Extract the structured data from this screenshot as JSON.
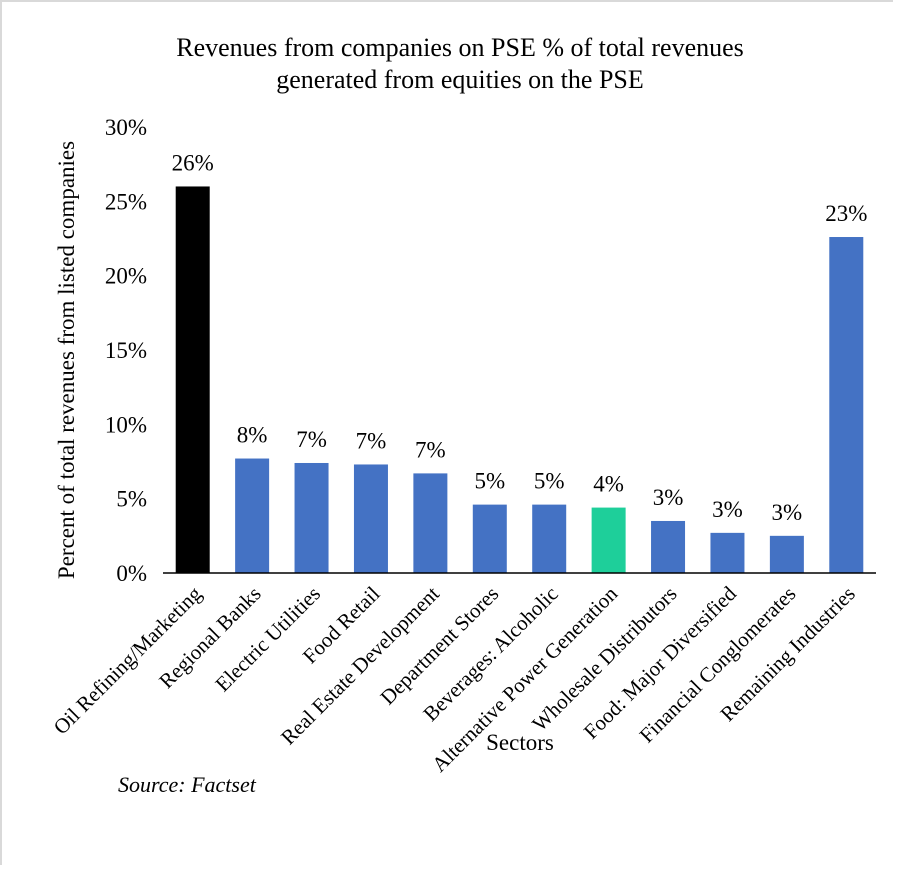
{
  "chart_data": {
    "type": "bar",
    "title_lines": [
      "Revenues from companies on PSE % of total revenues",
      "generated from equities on the PSE"
    ],
    "xlabel": "Sectors",
    "ylabel": "Percent of total revenues from listed companies",
    "ylim": [
      0,
      30
    ],
    "yticks": [
      "0%",
      "5%",
      "10%",
      "15%",
      "20%",
      "25%",
      "30%"
    ],
    "grid": false,
    "categories": [
      "Oil Refining/Marketing",
      "Regional Banks",
      "Electric Utilities",
      "Food Retail",
      "Real Estate Development",
      "Department Stores",
      "Beverages: Alcoholic",
      "Alternative Power Generation",
      "Wholesale Distributors",
      "Food: Major Diversified",
      "Financial Conglomerates",
      "Remaining Industries"
    ],
    "values": [
      26.0,
      7.7,
      7.4,
      7.3,
      6.7,
      4.6,
      4.6,
      4.4,
      3.5,
      2.7,
      2.5,
      22.6
    ],
    "data_labels": [
      "26%",
      "8%",
      "7%",
      "7%",
      "7%",
      "5%",
      "5%",
      "4%",
      "3%",
      "3%",
      "3%",
      "23%"
    ],
    "bar_colors": [
      "#000000",
      "#4472c4",
      "#4472c4",
      "#4472c4",
      "#4472c4",
      "#4472c4",
      "#4472c4",
      "#1ecf9a",
      "#4472c4",
      "#4472c4",
      "#4472c4",
      "#4472c4"
    ]
  },
  "source_note": "Source: Factset"
}
